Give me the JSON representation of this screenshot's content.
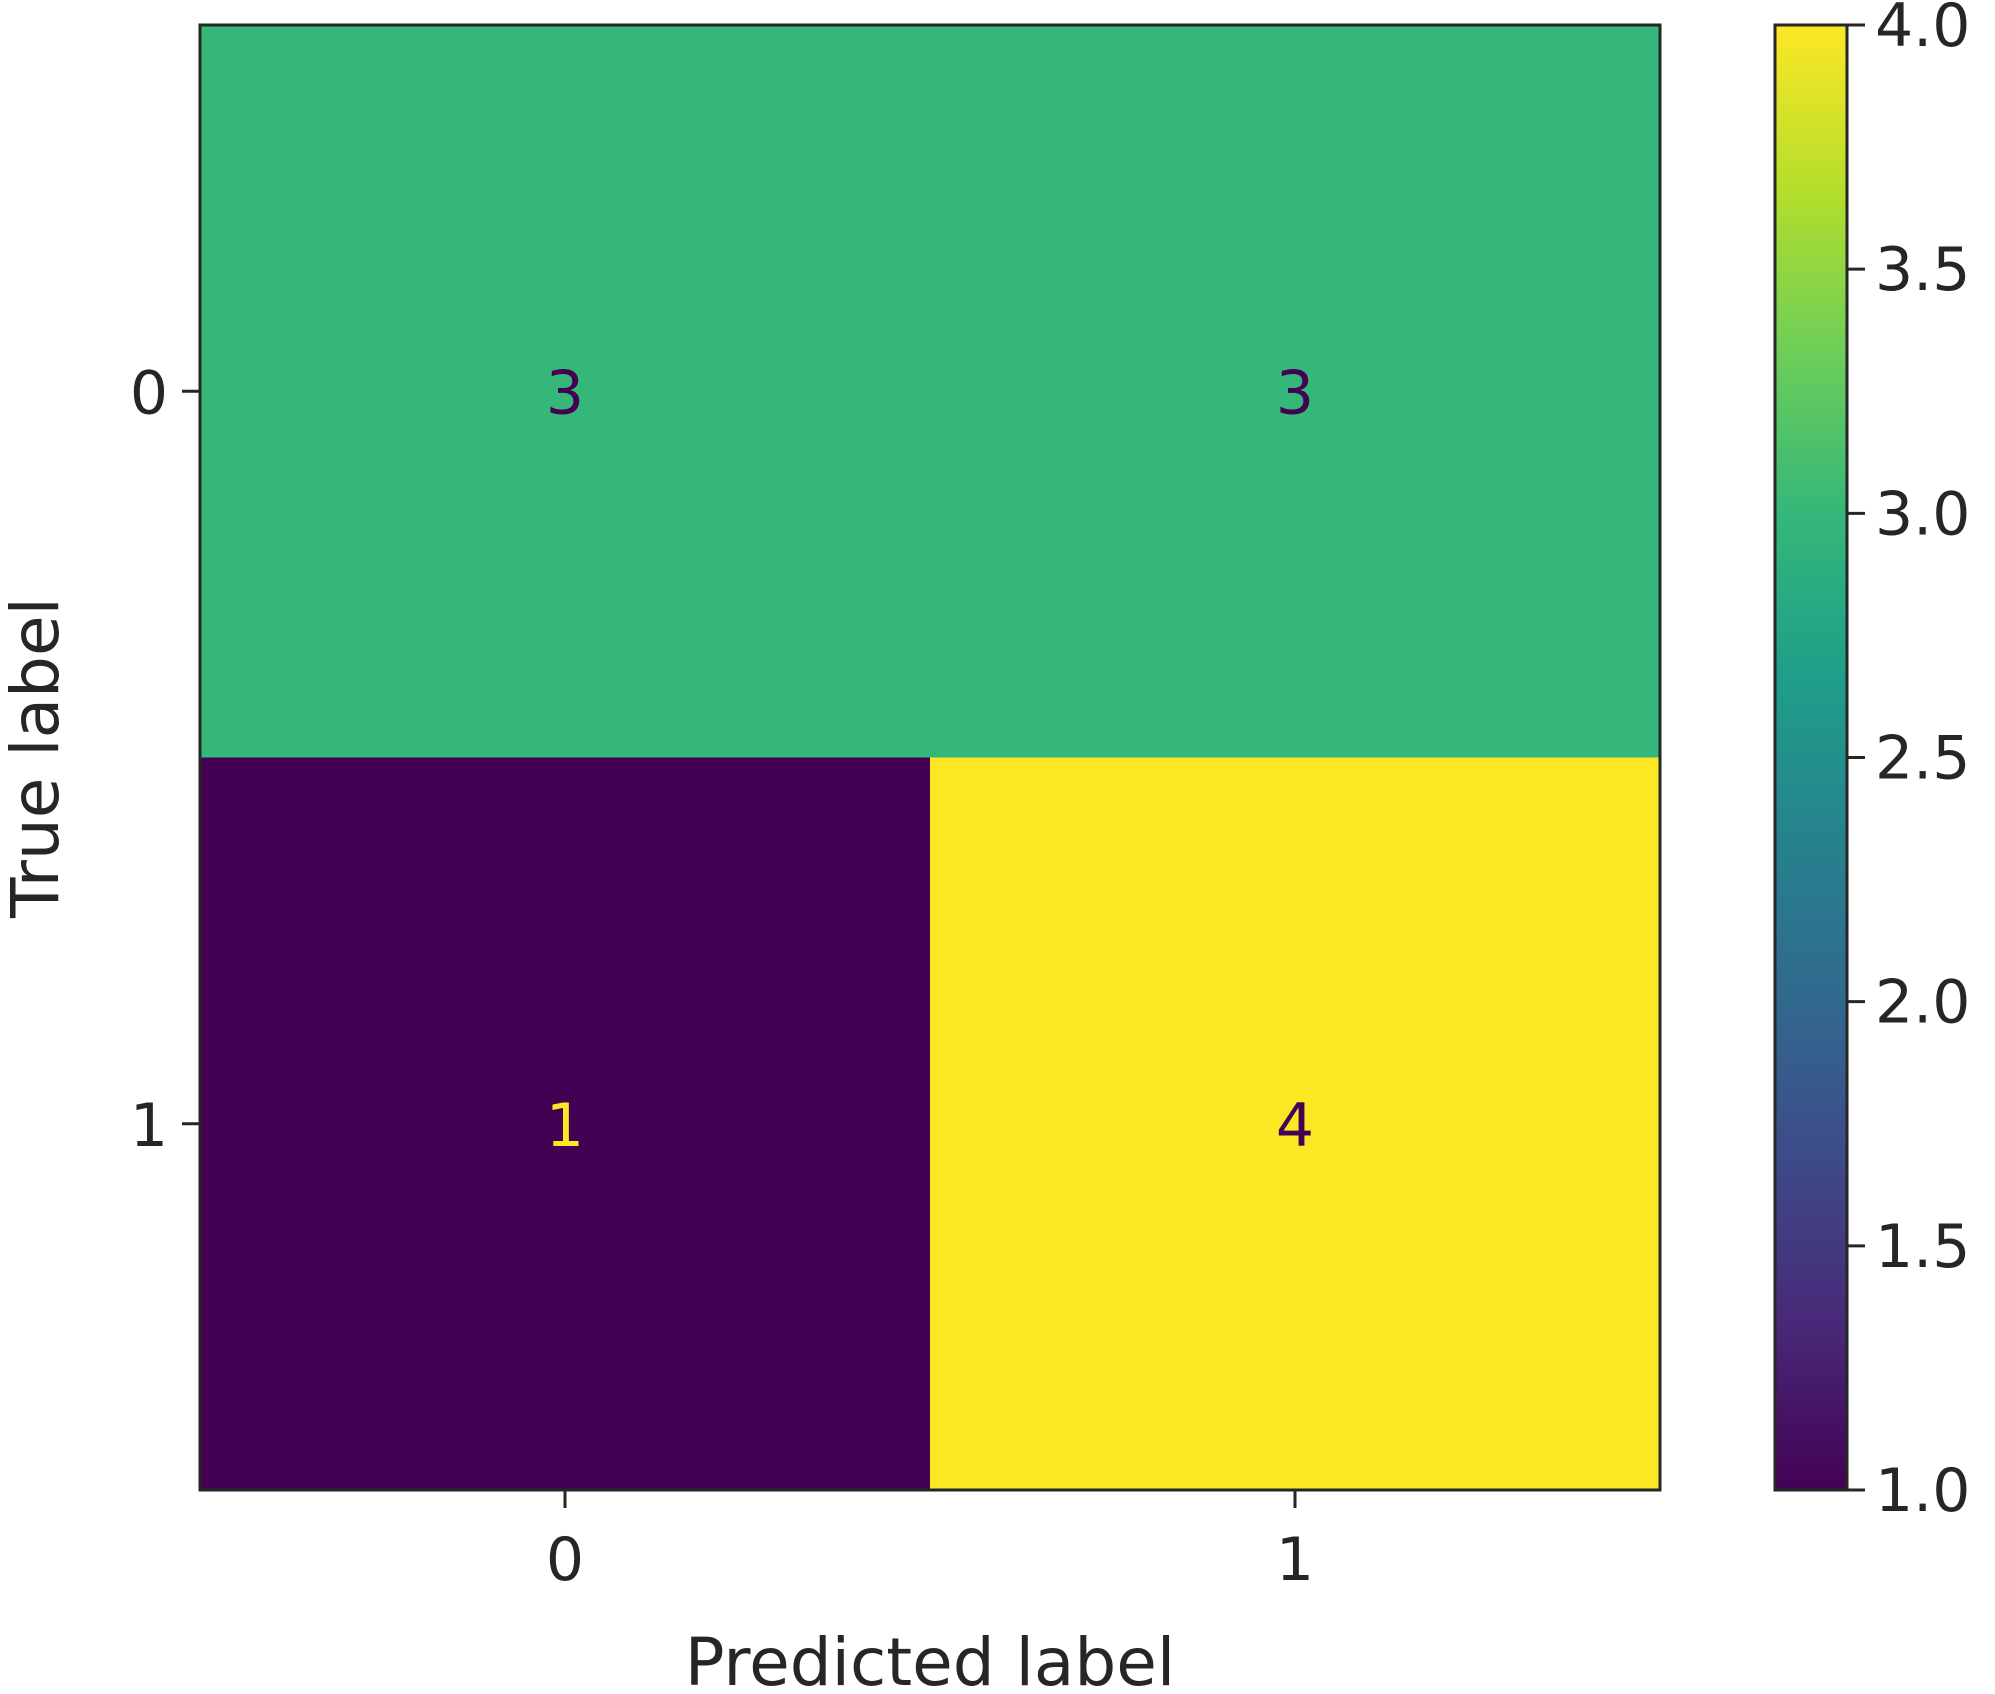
{
  "chart_data": {
    "type": "heatmap",
    "title": "",
    "xlabel": "Predicted label",
    "ylabel": "True label",
    "x_categories": [
      "0",
      "1"
    ],
    "y_categories": [
      "0",
      "1"
    ],
    "matrix": [
      [
        3,
        3
      ],
      [
        1,
        4
      ]
    ],
    "colormap": "viridis",
    "colorbar": {
      "range": [
        1.0,
        4.0
      ],
      "ticks": [
        "1.0",
        "1.5",
        "2.0",
        "2.5",
        "3.0",
        "3.5",
        "4.0"
      ]
    },
    "colors": {
      "min": "#440154",
      "max": "#fde725",
      "text_on_dark": "#fde725",
      "text_on_light": "#440154"
    }
  }
}
